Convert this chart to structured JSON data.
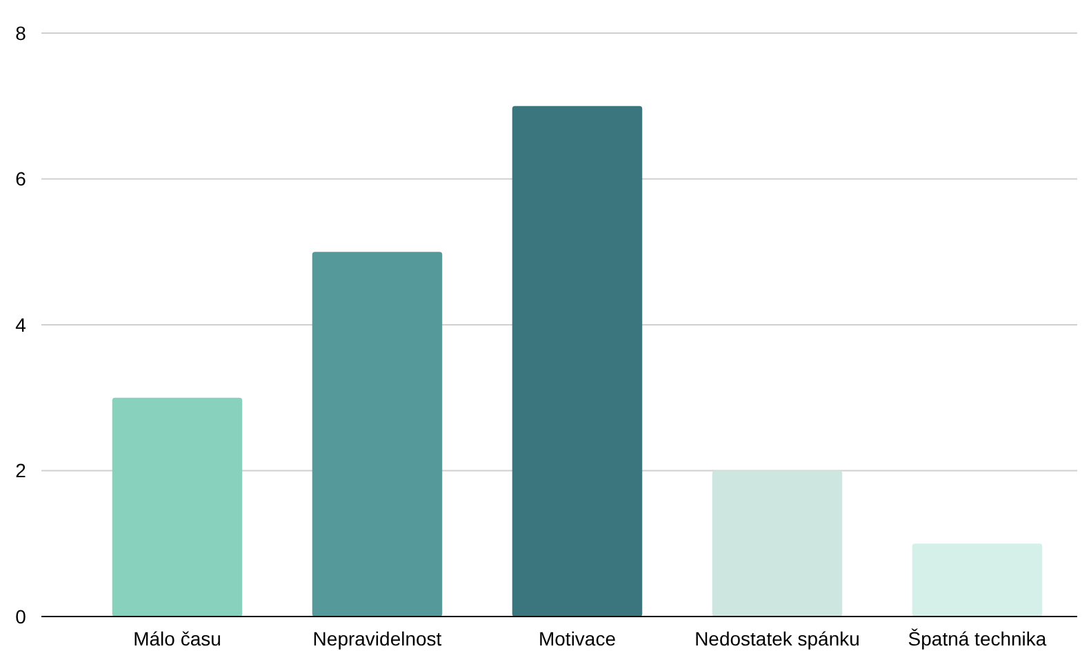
{
  "chart_data": {
    "type": "bar",
    "categories": [
      "Málo času",
      "Nepravidelnost",
      "Motivace",
      "Nedostatek spánku",
      "Špatná technika"
    ],
    "values": [
      3,
      5,
      7,
      2,
      1
    ],
    "colors": [
      "#88d1bd",
      "#55999a",
      "#3b767f",
      "#cde7e0",
      "#d5efe9"
    ],
    "ylim": [
      0,
      8
    ],
    "yticks": [
      0,
      2,
      4,
      6,
      8
    ],
    "grid": "y"
  }
}
